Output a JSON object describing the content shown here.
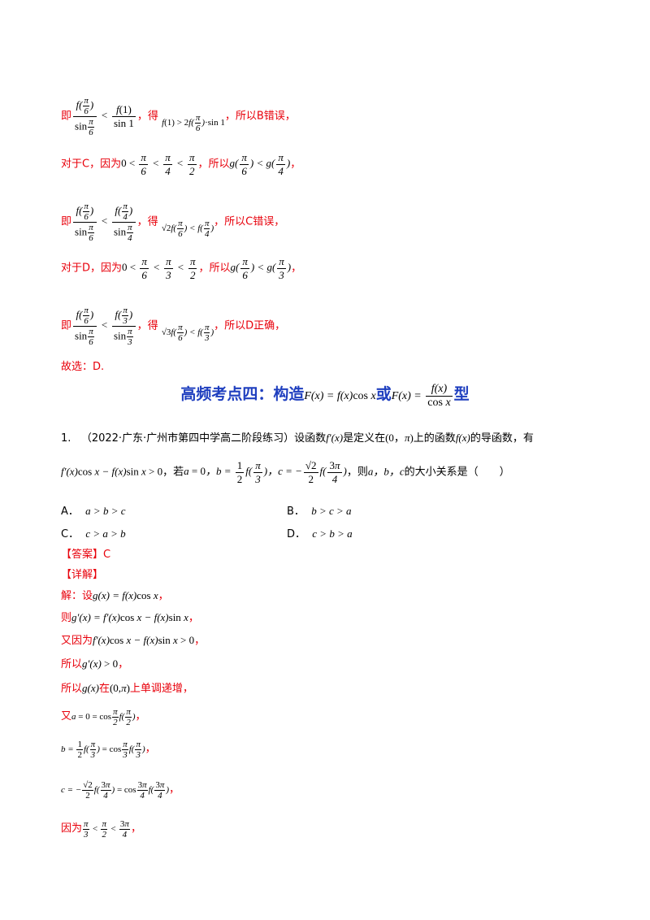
{
  "prior": {
    "b_prefix": "即",
    "b_get": "，得",
    "b_conclusion": "，所以B错误，",
    "c_intro": "对于C，因为",
    "c_so": "，所以",
    "c_end": "，",
    "c_prefix": "即",
    "c_get": "，得",
    "c_conclusion": "，所以C错误，",
    "d_intro": "对于D，因为",
    "d_so": "，所以",
    "d_end": "，",
    "d_prefix": "即",
    "d_get": "，得",
    "d_conclusion": "，所以D正确，",
    "choose": "故选：D."
  },
  "section": {
    "title_left": "高频考点四：构造",
    "title_mid": "或",
    "title_right": "型"
  },
  "question": {
    "number": "1.",
    "source": "（2022·广东·广州市第四中学高二阶段练习）",
    "stem_a": "设函数",
    "stem_b": "是定义在",
    "stem_c": "上的函数",
    "stem_d": "的导函数，有",
    "stem_e": "，若",
    "stem_f": "，则",
    "stem_g": "的大小关系是（　　）",
    "options": [
      {
        "label": "A．",
        "expr": "a > b > c"
      },
      {
        "label": "B．",
        "expr": "b > c > a"
      },
      {
        "label": "C．",
        "expr": "c > a > b"
      },
      {
        "label": "D．",
        "expr": "c > b > a"
      }
    ]
  },
  "answer": {
    "answer_label": "【答案】C",
    "detail_label": "【详解】",
    "s1": "解：设",
    "s2": "则",
    "s3": "又因为",
    "s4": "所以",
    "s5a": "所以",
    "s5b": "在",
    "s5c": "上单调递增，",
    "s6": "又",
    "s9": "因为"
  }
}
